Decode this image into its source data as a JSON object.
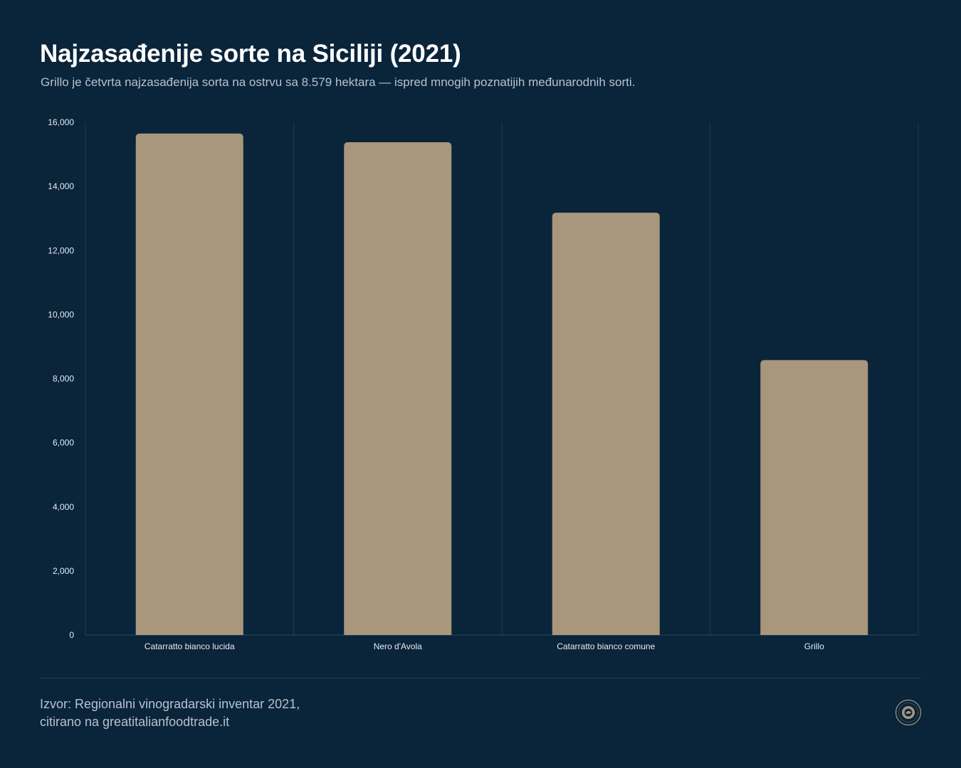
{
  "header": {
    "title": "Najzasađenije sorte na Siciliji (2021)",
    "subtitle": "Grillo je četvrta najzasađenija sorta na ostrvu sa 8.579 hektara — ispred mnogih poznatijih međunarodnih sorti."
  },
  "chart_data": {
    "type": "bar",
    "categories": [
      "Catarratto bianco lucida",
      "Nero d'Avola",
      "Catarratto bianco comune",
      "Grillo"
    ],
    "values": [
      15650,
      15380,
      13180,
      8579
    ],
    "ylim": [
      0,
      16000
    ],
    "yticks": [
      0,
      2000,
      4000,
      6000,
      8000,
      10000,
      12000,
      14000,
      16000
    ],
    "ytick_labels": [
      "0",
      "2,000",
      "4,000",
      "6,000",
      "8,000",
      "10,000",
      "12,000",
      "14,000",
      "16,000"
    ],
    "grid": "vertical category separators",
    "xlabel": "",
    "ylabel": ""
  },
  "footer": {
    "source_line1": "Izvor: Regionalni vinogradarski inventar 2021,",
    "source_line2": "citirano na greatitalianfoodtrade.it"
  },
  "colors": {
    "background": "#0a243a",
    "bar": "#a8977c",
    "grid": "#22394f",
    "axis_text": "#e8ecef",
    "muted_text": "#b7c2cd"
  },
  "icons": {
    "logo": "round-seal-logo"
  }
}
